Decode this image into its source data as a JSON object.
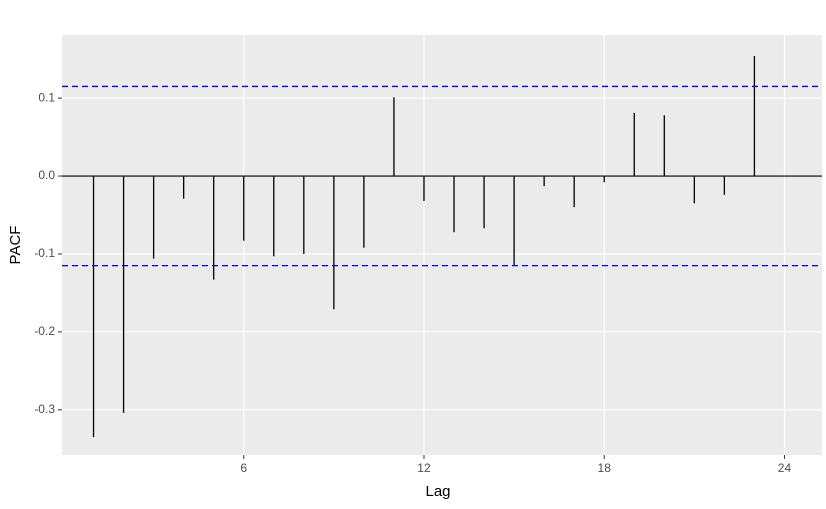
{
  "chart_data": {
    "type": "pacf",
    "x_label": "Lag",
    "y_label": "PACF",
    "x": [
      1,
      2,
      3,
      4,
      5,
      6,
      7,
      8,
      9,
      10,
      11,
      12,
      13,
      14,
      15,
      16,
      17,
      18,
      19,
      20,
      21,
      22,
      23
    ],
    "values": [
      -0.335,
      -0.304,
      -0.106,
      -0.029,
      -0.133,
      -0.083,
      -0.103,
      -0.1,
      -0.171,
      -0.092,
      0.101,
      -0.032,
      -0.072,
      -0.067,
      -0.115,
      -0.013,
      -0.04,
      -0.008,
      0.081,
      0.078,
      -0.035,
      -0.024,
      0.154
    ],
    "color": "#000000",
    "confidence_bounds": [
      -0.115,
      0.115
    ],
    "bound_color": "#0000cc",
    "xlim": [
      -0.05,
      25.25
    ],
    "xticks": [
      6,
      12,
      18,
      24
    ],
    "ylim": [
      -0.358,
      0.181
    ],
    "yticks": [
      -0.3,
      -0.2,
      -0.1,
      {
        "value": 0,
        "label": "0.0"
      },
      0.1
    ],
    "grid": true
  }
}
